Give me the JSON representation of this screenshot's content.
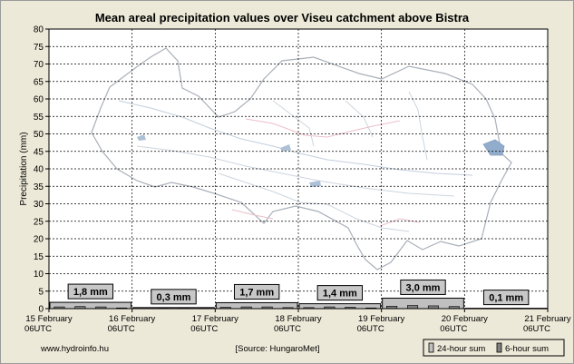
{
  "chart_data": {
    "type": "bar",
    "title": "Mean areal precipitation values over Viseu catchment above Bistra",
    "ylabel": "Precipitation (mm)",
    "ylim": [
      0,
      80
    ],
    "ytick_step": 5,
    "grid": true,
    "x_ticks": [
      {
        "date": "15 February",
        "time": "06UTC"
      },
      {
        "date": "16 February",
        "time": "06UTC"
      },
      {
        "date": "17 February",
        "time": "06UTC"
      },
      {
        "date": "18 February",
        "time": "06UTC"
      },
      {
        "date": "19 February",
        "time": "06UTC"
      },
      {
        "date": "20 February",
        "time": "06UTC"
      },
      {
        "date": "21 February",
        "time": "06UTC"
      }
    ],
    "series": [
      {
        "name": "24-hour sum",
        "color": "#c0c0c0",
        "values": [
          1.8,
          0.3,
          1.7,
          1.4,
          3.0,
          0.1
        ],
        "labels": [
          "1,8 mm",
          "0,3 mm",
          "1,7 mm",
          "1,4 mm",
          "3,0 mm",
          "0,1 mm"
        ]
      },
      {
        "name": "6-hour sum",
        "color": "#808080",
        "values": [
          0.5,
          0.6,
          0.5,
          0.2,
          0.0,
          0.1,
          0.1,
          0.1,
          0.4,
          0.5,
          0.5,
          0.3,
          0.3,
          0.5,
          0.4,
          0.2,
          0.7,
          0.9,
          0.8,
          0.6,
          0.0,
          0.0,
          0.1,
          0.0
        ]
      }
    ],
    "legend_position": "bottom-right"
  },
  "footer": {
    "website": "www.hydroinfo.hu",
    "source": "[Source: HungaroMet]"
  },
  "colors": {
    "background": "#ece9d8",
    "plot_bg": "#ffffff",
    "label_box": "#c8c8c8",
    "map_outline": "#9aa3ad",
    "map_rivers": "#b8c7d6",
    "map_lake": "#7f9fc4",
    "map_border": "#e8b5c0"
  }
}
